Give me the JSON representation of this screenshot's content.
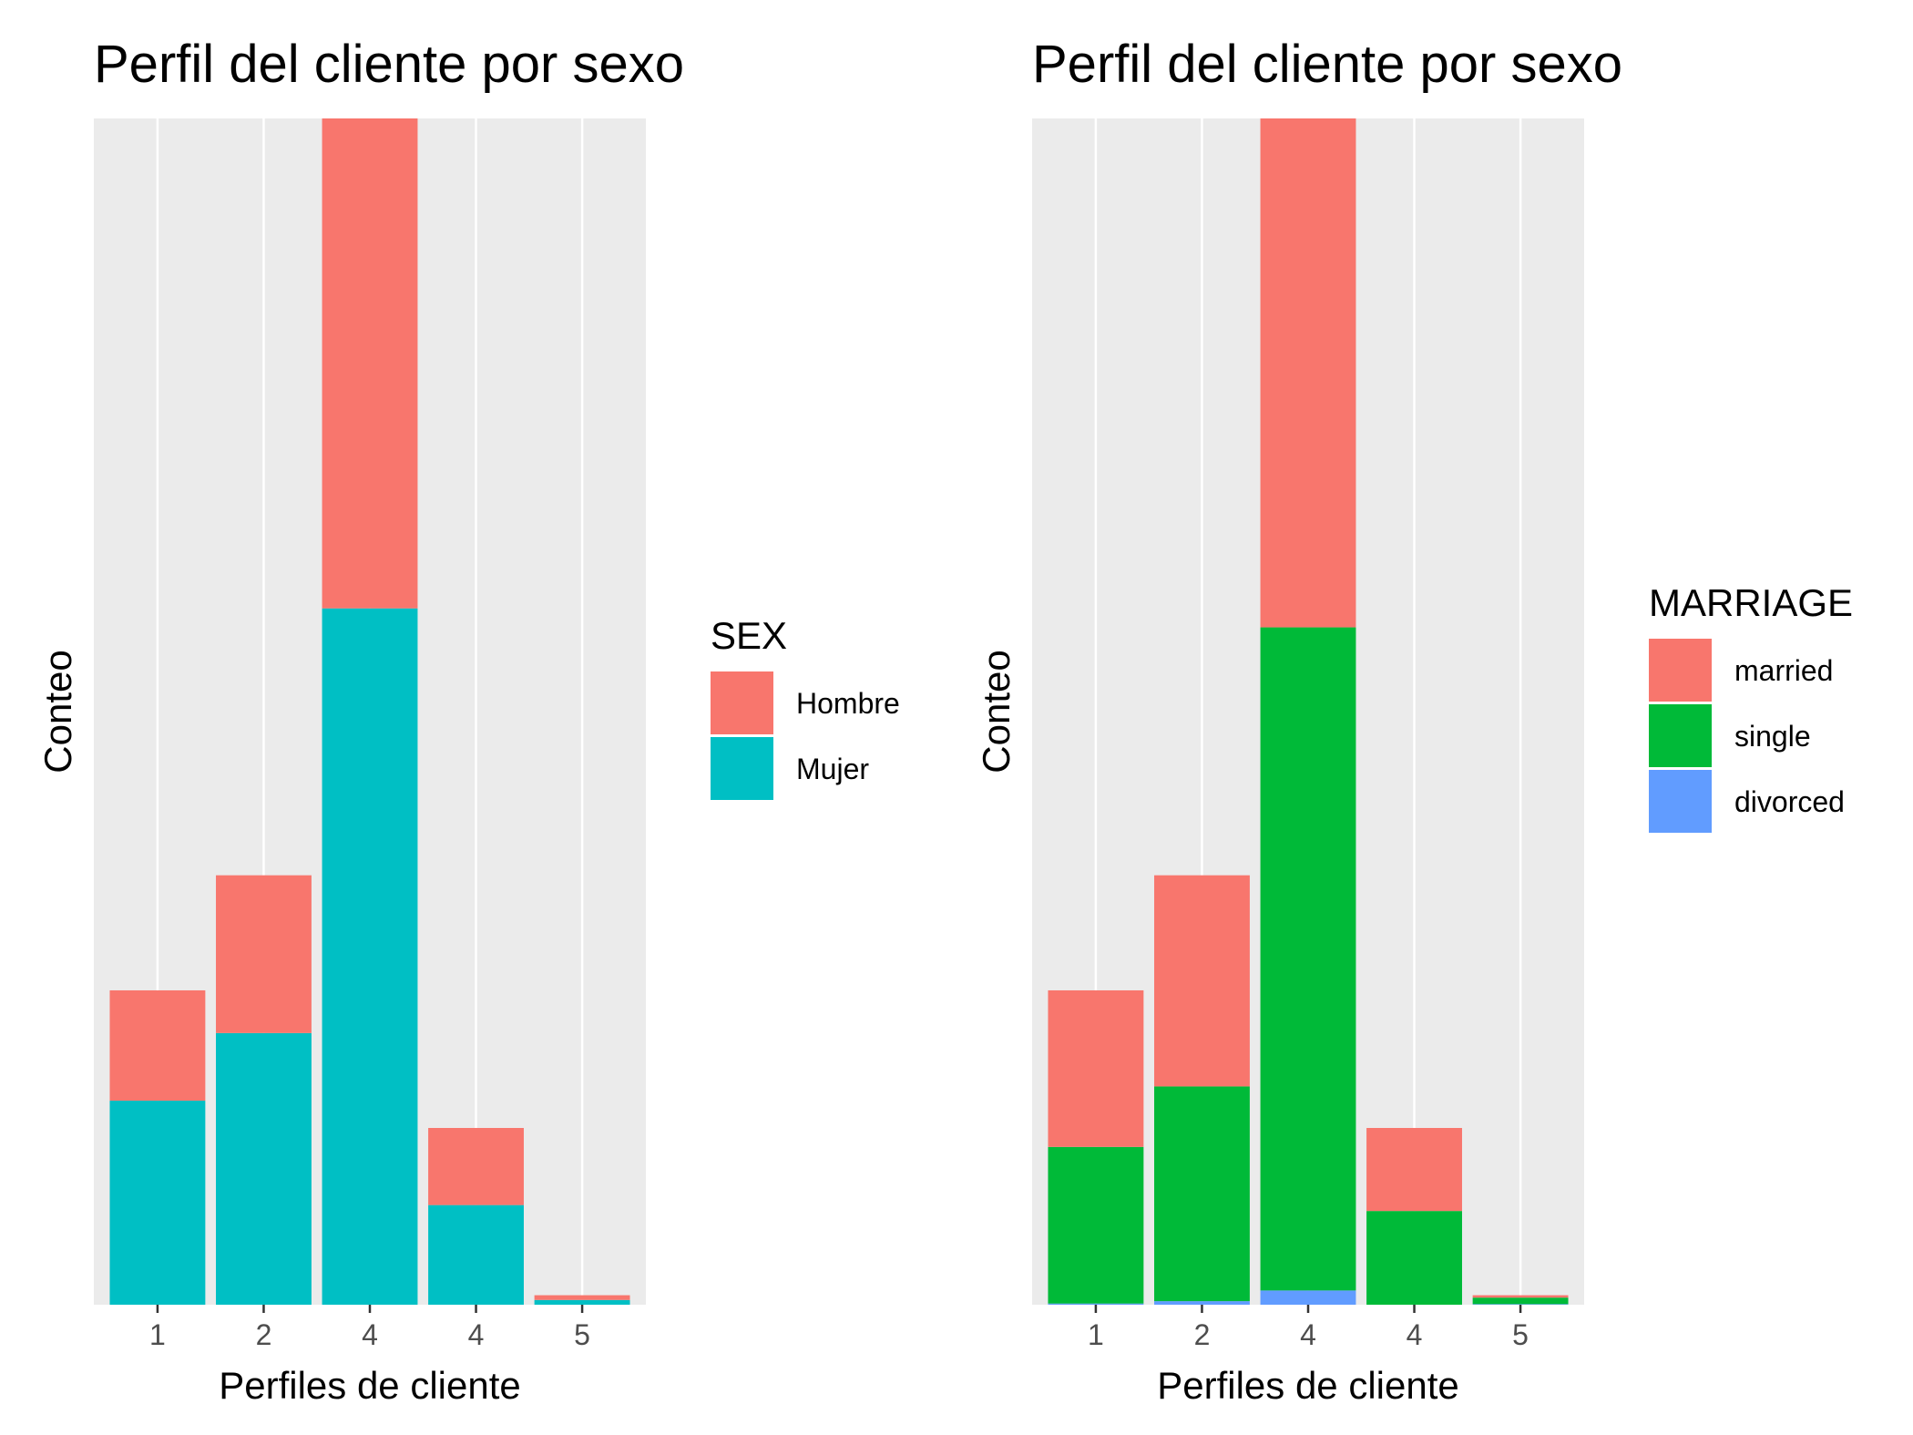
{
  "chart_data": [
    {
      "type": "bar",
      "stacked": true,
      "title": "Perfil del cliente por sexo",
      "xlabel": "Perfiles de cliente",
      "ylabel": "Conteo",
      "categories": [
        "1",
        "2",
        "4",
        "4",
        "5"
      ],
      "ylim": [
        0,
        10000
      ],
      "grid": true,
      "y_ticks_visible": false,
      "legend": {
        "title": "SEX",
        "placement": "right"
      },
      "series": [
        {
          "name": "Mujer",
          "color": "#00BFC4",
          "values": [
            1720,
            2290,
            5870,
            840,
            40
          ]
        },
        {
          "name": "Hombre",
          "color": "#F8766D",
          "values": [
            930,
            1330,
            4130,
            650,
            40
          ]
        }
      ]
    },
    {
      "type": "bar",
      "stacked": true,
      "title": "Perfil del cliente por sexo",
      "xlabel": "Perfiles de cliente",
      "ylabel": "Conteo",
      "categories": [
        "1",
        "2",
        "4",
        "4",
        "5"
      ],
      "ylim": [
        0,
        10000
      ],
      "grid": true,
      "y_ticks_visible": false,
      "legend": {
        "title": "MARRIAGE",
        "placement": "right"
      },
      "series": [
        {
          "name": "divorced",
          "color": "#619CFF",
          "values": [
            10,
            30,
            120,
            0,
            5
          ]
        },
        {
          "name": "single",
          "color": "#00BA38",
          "values": [
            1320,
            1810,
            5590,
            790,
            55
          ]
        },
        {
          "name": "married",
          "color": "#F8766D",
          "values": [
            1320,
            1780,
            4290,
            700,
            20
          ]
        }
      ]
    }
  ]
}
